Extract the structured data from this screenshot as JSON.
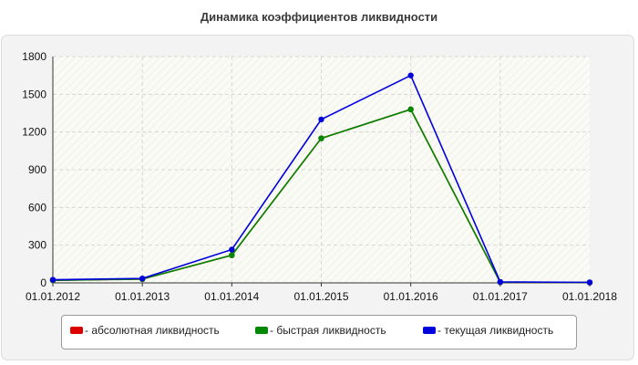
{
  "chart_data": {
    "type": "line",
    "title": "Динамика коэффициентов ликвидности",
    "categories": [
      "01.01.2012",
      "01.01.2013",
      "01.01.2014",
      "01.01.2015",
      "01.01.2016",
      "01.01.2017",
      "01.01.2018"
    ],
    "yticks": [
      0,
      300,
      600,
      900,
      1200,
      1500,
      1800
    ],
    "ylim": [
      0,
      1800
    ],
    "grid": true,
    "legend_position": "bottom",
    "series": [
      {
        "name": "- абсолютная ликвидность",
        "color": "#dd0000",
        "values": [
          20,
          30,
          220,
          1150,
          1380,
          5,
          3
        ]
      },
      {
        "name": "- быстрая ликвидность",
        "color": "#008800",
        "values": [
          20,
          30,
          220,
          1150,
          1380,
          5,
          3
        ]
      },
      {
        "name": "- текущая ликвидность",
        "color": "#0000dd",
        "values": [
          25,
          35,
          265,
          1300,
          1650,
          8,
          4
        ]
      }
    ]
  }
}
